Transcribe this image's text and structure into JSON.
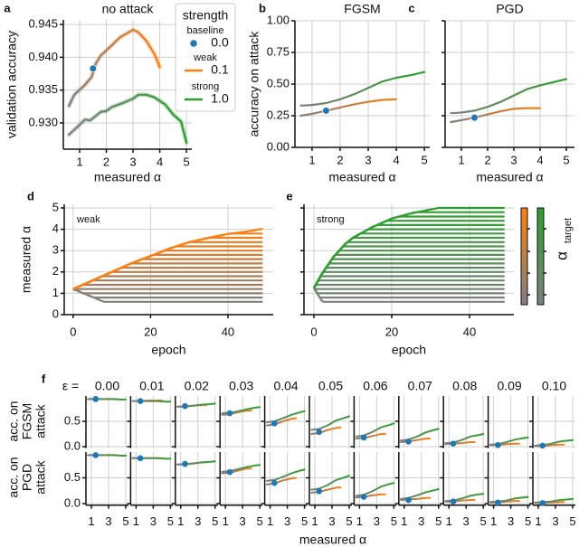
{
  "colors": {
    "weak": "#ff7f0e",
    "strong": "#2ca02c",
    "baseline": "#1f77b4",
    "low": "#7f7f7f"
  },
  "chart_data": [
    {
      "panel": "a",
      "type": "line",
      "title": "no attack",
      "xlabel": "measured α",
      "ylabel": "validation accuracy",
      "xlim": [
        0.39,
        5.2
      ],
      "ylim": [
        0.926,
        0.9457
      ],
      "xticks": [
        1,
        2,
        3,
        4,
        5
      ],
      "xtick_labels": [
        "1",
        "2",
        "3",
        "4",
        "5"
      ],
      "yticks": [
        0.93,
        0.935,
        0.94,
        0.945
      ],
      "ytick_labels": [
        "0.930",
        "0.935",
        "0.940",
        "0.945"
      ],
      "grid": true,
      "series": [
        {
          "name": "weak",
          "x": [
            0.6,
            0.8,
            1.2,
            1.45,
            1.6,
            1.8,
            2.2,
            2.5,
            3.0,
            3.2,
            3.5,
            3.8,
            4.0
          ],
          "y": [
            0.9326,
            0.9343,
            0.9358,
            0.937,
            0.939,
            0.9403,
            0.9418,
            0.943,
            0.9442,
            0.9438,
            0.9425,
            0.9405,
            0.9385
          ]
        },
        {
          "name": "strong",
          "x": [
            0.6,
            1.0,
            1.2,
            1.4,
            1.8,
            2.0,
            2.2,
            2.6,
            3.0,
            3.2,
            3.5,
            3.8,
            4.2,
            4.5,
            4.8,
            5.0
          ],
          "y": [
            0.9282,
            0.9297,
            0.9305,
            0.9304,
            0.9317,
            0.9318,
            0.9324,
            0.933,
            0.9337,
            0.9343,
            0.9343,
            0.9339,
            0.9328,
            0.9313,
            0.9302,
            0.927
          ]
        }
      ],
      "baseline": {
        "x": 1.5,
        "y": 0.9383
      },
      "legend": {
        "title": "strength",
        "placement": "top-right",
        "entries": [
          {
            "label": "baseline",
            "value": "0.0"
          },
          {
            "label": "weak",
            "value": "0.1"
          },
          {
            "label": "strong",
            "value": "1.0"
          }
        ]
      }
    },
    {
      "panel": "b",
      "type": "line",
      "title": "FGSM",
      "xlabel": "measured α",
      "ylabel": "accuracy on attack",
      "xlim": [
        0.39,
        5.19
      ],
      "ylim": [
        0,
        1
      ],
      "xticks": [
        1,
        2,
        3,
        4,
        5
      ],
      "xtick_labels": [
        "1",
        "2",
        "3",
        "4",
        "5"
      ],
      "yticks": [
        0,
        0.25,
        0.5,
        0.75,
        1.0
      ],
      "ytick_labels": [
        "0.00",
        "0.25",
        "0.50",
        "0.75",
        "1.00"
      ],
      "grid": true,
      "series": [
        {
          "name": "weak",
          "x": [
            0.6,
            1,
            1.5,
            2,
            2.5,
            3,
            3.5,
            4
          ],
          "y": [
            0.25,
            0.265,
            0.29,
            0.315,
            0.34,
            0.36,
            0.375,
            0.38
          ]
        },
        {
          "name": "strong",
          "x": [
            0.6,
            1,
            1.5,
            2,
            2.5,
            3,
            3.5,
            4,
            4.5,
            5
          ],
          "y": [
            0.33,
            0.335,
            0.35,
            0.38,
            0.42,
            0.47,
            0.52,
            0.55,
            0.57,
            0.595
          ]
        }
      ],
      "baseline": {
        "x": 1.5,
        "y": 0.29
      }
    },
    {
      "panel": "c",
      "type": "line",
      "title": "PGD",
      "xlabel": "measured α",
      "xlim": [
        0.38,
        5.31
      ],
      "ylim": [
        0,
        1
      ],
      "xticks": [
        1,
        2,
        3,
        4,
        5
      ],
      "xtick_labels": [
        "1",
        "2",
        "3",
        "4",
        "5"
      ],
      "yticks": [
        0,
        0.25,
        0.5,
        0.75,
        1.0
      ],
      "grid": true,
      "series": [
        {
          "name": "weak",
          "x": [
            0.6,
            1,
            1.5,
            2,
            2.5,
            3,
            3.5,
            4
          ],
          "y": [
            0.2,
            0.215,
            0.235,
            0.26,
            0.285,
            0.305,
            0.31,
            0.31
          ]
        },
        {
          "name": "strong",
          "x": [
            0.6,
            1,
            1.5,
            2,
            2.5,
            3,
            3.5,
            4,
            4.5,
            5
          ],
          "y": [
            0.27,
            0.275,
            0.29,
            0.32,
            0.36,
            0.41,
            0.46,
            0.49,
            0.515,
            0.54
          ]
        }
      ],
      "baseline": {
        "x": 1.5,
        "y": 0.235
      }
    },
    {
      "panel": "d",
      "type": "line",
      "annotation": "weak",
      "xlabel": "epoch",
      "ylabel": "measured α",
      "xlim": [
        -2.3,
        51.7
      ],
      "ylim": [
        0,
        5.17
      ],
      "xticks": [
        0,
        20,
        40
      ],
      "xtick_labels": [
        "0",
        "20",
        "40"
      ],
      "yticks": [
        0,
        1,
        2,
        3,
        4,
        5
      ],
      "ytick_labels": [
        "0",
        "1",
        "2",
        "3",
        "4",
        "5"
      ],
      "grid": true,
      "envelope": {
        "epoch": [
          0,
          5,
          10,
          15,
          20,
          25,
          30,
          35,
          40,
          45,
          49
        ],
        "alpha": [
          1.2,
          1.6,
          2.0,
          2.4,
          2.75,
          3.1,
          3.4,
          3.6,
          3.78,
          3.9,
          4.02
        ]
      },
      "targets": [
        0.6,
        0.8,
        1.0,
        1.2,
        1.4,
        1.6,
        1.8,
        2.0,
        2.2,
        2.4,
        2.6,
        2.8,
        3.0,
        3.2,
        3.4,
        3.6,
        3.8,
        4.02
      ]
    },
    {
      "panel": "e",
      "type": "line",
      "annotation": "strong",
      "xlabel": "epoch",
      "xlim": [
        -2.56,
        51.4
      ],
      "ylim": [
        0,
        5.17
      ],
      "xticks": [
        0,
        20,
        40
      ],
      "xtick_labels": [
        "0",
        "20",
        "40"
      ],
      "yticks": [
        0,
        1,
        2,
        3,
        4,
        5
      ],
      "grid": true,
      "envelope": {
        "epoch": [
          0,
          2,
          5,
          8,
          10,
          15,
          20,
          25,
          32,
          49
        ],
        "alpha": [
          1.25,
          1.9,
          2.7,
          3.3,
          3.6,
          4.1,
          4.5,
          4.75,
          5.0,
          5.0
        ]
      },
      "targets": [
        0.6,
        0.8,
        1.0,
        1.2,
        1.4,
        1.6,
        1.8,
        2.0,
        2.2,
        2.4,
        2.6,
        2.8,
        3.0,
        3.2,
        3.4,
        3.6,
        3.8,
        4.0,
        4.2,
        4.4,
        4.6,
        4.8,
        5.0
      ],
      "colorbar": {
        "label": "α",
        "label_sub": "target"
      }
    },
    {
      "panel": "f",
      "type": "line",
      "eps_prefix": "ε =",
      "eps": [
        "0.00",
        "0.01",
        "0.02",
        "0.03",
        "0.04",
        "0.05",
        "0.06",
        "0.07",
        "0.08",
        "0.09",
        "0.10"
      ],
      "xlabel": "measured α",
      "row_labels": [
        [
          "acc. on",
          "FGSM",
          "attack"
        ],
        [
          "acc. on",
          "PGD",
          "attack"
        ]
      ],
      "xlim": [
        0.37,
        5.32
      ],
      "ylim": [
        -0.03,
        1.0
      ],
      "xticks": [
        1,
        3,
        5
      ],
      "xtick_labels": [
        "1",
        "3",
        "5"
      ],
      "yticks": [
        0,
        0.5
      ],
      "ytick_labels": [
        "0.0",
        "0.5"
      ],
      "weak_x": [
        0.6,
        1.5,
        2.5,
        3.5,
        4.0
      ],
      "strong_x": [
        0.6,
        1.5,
        2.5,
        3.5,
        4.5,
        5.0
      ],
      "baseline_x": 1.5,
      "rows": [
        {
          "attack": "FGSM",
          "weak": [
            [
              0.94,
              0.94,
              0.94,
              0.94,
              0.94
            ],
            [
              0.9,
              0.9,
              0.91,
              0.91,
              0.91
            ],
            [
              0.79,
              0.79,
              0.81,
              0.82,
              0.82
            ],
            [
              0.63,
              0.64,
              0.68,
              0.71,
              0.71
            ],
            [
              0.42,
              0.44,
              0.5,
              0.55,
              0.56
            ],
            [
              0.25,
              0.27,
              0.33,
              0.37,
              0.38
            ],
            [
              0.16,
              0.17,
              0.21,
              0.25,
              0.25
            ],
            [
              0.09,
              0.1,
              0.13,
              0.16,
              0.16
            ],
            [
              0.05,
              0.06,
              0.07,
              0.09,
              0.09
            ],
            [
              0.03,
              0.03,
              0.05,
              0.06,
              0.06
            ],
            [
              0.01,
              0.01,
              0.03,
              0.04,
              0.04
            ]
          ],
          "strong": [
            [
              0.94,
              0.94,
              0.94,
              0.94,
              0.93,
              0.93
            ],
            [
              0.9,
              0.9,
              0.9,
              0.9,
              0.89,
              0.89
            ],
            [
              0.79,
              0.79,
              0.81,
              0.83,
              0.84,
              0.85
            ],
            [
              0.66,
              0.67,
              0.7,
              0.74,
              0.77,
              0.78
            ],
            [
              0.48,
              0.5,
              0.56,
              0.63,
              0.68,
              0.7
            ],
            [
              0.33,
              0.35,
              0.42,
              0.52,
              0.57,
              0.6
            ],
            [
              0.2,
              0.22,
              0.29,
              0.38,
              0.43,
              0.46
            ],
            [
              0.12,
              0.14,
              0.2,
              0.28,
              0.33,
              0.35
            ],
            [
              0.07,
              0.08,
              0.13,
              0.2,
              0.23,
              0.25
            ],
            [
              0.04,
              0.05,
              0.09,
              0.14,
              0.17,
              0.18
            ],
            [
              0.02,
              0.03,
              0.06,
              0.1,
              0.12,
              0.13
            ]
          ],
          "baseline": [
            0.94,
            0.9,
            0.8,
            0.66,
            0.46,
            0.29,
            0.18,
            0.1,
            0.06,
            0.03,
            0.02
          ]
        },
        {
          "attack": "PGD",
          "weak": [
            [
              0.94,
              0.94,
              0.94,
              0.94,
              0.94
            ],
            [
              0.88,
              0.88,
              0.88,
              0.88,
              0.88
            ],
            [
              0.76,
              0.77,
              0.78,
              0.8,
              0.8
            ],
            [
              0.59,
              0.6,
              0.64,
              0.68,
              0.68
            ],
            [
              0.37,
              0.39,
              0.45,
              0.49,
              0.5
            ],
            [
              0.21,
              0.23,
              0.27,
              0.31,
              0.31
            ],
            [
              0.12,
              0.13,
              0.16,
              0.18,
              0.18
            ],
            [
              0.07,
              0.08,
              0.09,
              0.11,
              0.11
            ],
            [
              0.04,
              0.04,
              0.06,
              0.07,
              0.07
            ],
            [
              0.02,
              0.02,
              0.04,
              0.05,
              0.05
            ],
            [
              0.01,
              0.01,
              0.02,
              0.03,
              0.03
            ]
          ],
          "strong": [
            [
              0.94,
              0.94,
              0.94,
              0.94,
              0.93,
              0.93
            ],
            [
              0.88,
              0.88,
              0.88,
              0.88,
              0.87,
              0.87
            ],
            [
              0.76,
              0.76,
              0.78,
              0.8,
              0.81,
              0.82
            ],
            [
              0.62,
              0.63,
              0.67,
              0.71,
              0.74,
              0.75
            ],
            [
              0.44,
              0.46,
              0.52,
              0.59,
              0.64,
              0.66
            ],
            [
              0.27,
              0.29,
              0.36,
              0.46,
              0.51,
              0.54
            ],
            [
              0.15,
              0.17,
              0.24,
              0.33,
              0.38,
              0.4
            ],
            [
              0.09,
              0.11,
              0.16,
              0.22,
              0.26,
              0.28
            ],
            [
              0.05,
              0.06,
              0.1,
              0.15,
              0.18,
              0.19
            ],
            [
              0.03,
              0.04,
              0.06,
              0.1,
              0.12,
              0.13
            ],
            [
              0.02,
              0.03,
              0.04,
              0.07,
              0.08,
              0.09
            ]
          ],
          "baseline": [
            0.94,
            0.88,
            0.77,
            0.61,
            0.4,
            0.24,
            0.13,
            0.07,
            0.04,
            0.02,
            0.01
          ]
        }
      ]
    }
  ]
}
